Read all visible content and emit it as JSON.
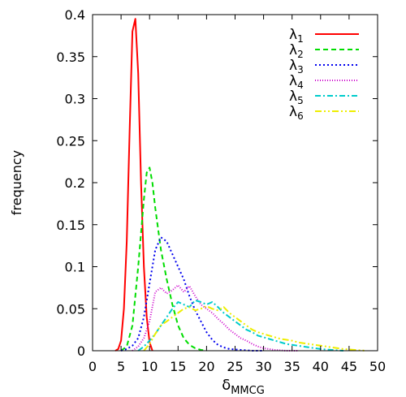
{
  "chart_data": {
    "type": "line",
    "title": "",
    "xlabel": "δ",
    "xlabel_subscript": "MMCG",
    "ylabel": "frequency",
    "xlim": [
      0,
      50
    ],
    "ylim": [
      0,
      0.4
    ],
    "xticks": [
      "0",
      "5",
      "10",
      "15",
      "20",
      "25",
      "30",
      "35",
      "40",
      "45",
      "50"
    ],
    "yticks": [
      "0",
      "0.05",
      "0.1",
      "0.15",
      "0.2",
      "0.25",
      "0.3",
      "0.35",
      "0.4"
    ],
    "grid": false,
    "legend_position": "top-right",
    "series": [
      {
        "name": "λ",
        "sub": "1",
        "color": "#ff0000",
        "dash": "solid",
        "x": [
          4,
          4.5,
          5,
          5.5,
          6,
          6.5,
          7,
          7.5,
          8,
          8.5,
          9,
          9.5,
          10,
          10.5
        ],
        "y": [
          0.0,
          0.002,
          0.012,
          0.05,
          0.13,
          0.26,
          0.38,
          0.395,
          0.33,
          0.2,
          0.1,
          0.04,
          0.01,
          0.0
        ]
      },
      {
        "name": "λ",
        "sub": "2",
        "color": "#00dd00",
        "dash": "6,4",
        "x": [
          5,
          6,
          7,
          8,
          9,
          9.5,
          10,
          10.5,
          11,
          12,
          13,
          14,
          15,
          16,
          17,
          18,
          19,
          20
        ],
        "y": [
          0.0,
          0.005,
          0.03,
          0.1,
          0.18,
          0.212,
          0.218,
          0.2,
          0.17,
          0.12,
          0.085,
          0.055,
          0.03,
          0.015,
          0.007,
          0.003,
          0.001,
          0.0
        ]
      },
      {
        "name": "λ",
        "sub": "3",
        "color": "#0000ee",
        "dash": "2,3",
        "x": [
          5,
          6,
          7,
          8,
          9,
          10,
          11,
          12,
          13,
          14,
          15,
          16,
          17,
          18,
          19,
          20,
          21,
          22,
          23,
          24,
          26,
          28,
          30
        ],
        "y": [
          0.0,
          0.002,
          0.006,
          0.015,
          0.04,
          0.08,
          0.12,
          0.135,
          0.13,
          0.115,
          0.1,
          0.085,
          0.065,
          0.048,
          0.035,
          0.022,
          0.013,
          0.007,
          0.004,
          0.002,
          0.001,
          0.0,
          0.0
        ]
      },
      {
        "name": "λ",
        "sub": "4",
        "color": "#cc00cc",
        "dash": "1,2",
        "x": [
          7,
          8,
          9,
          10,
          11,
          12,
          13,
          14,
          15,
          16,
          17,
          18,
          19,
          20,
          21,
          22,
          23,
          24,
          25,
          26,
          27,
          28,
          29,
          30,
          31,
          32,
          34,
          36
        ],
        "y": [
          0.0,
          0.005,
          0.015,
          0.035,
          0.07,
          0.075,
          0.068,
          0.072,
          0.078,
          0.07,
          0.077,
          0.065,
          0.055,
          0.05,
          0.045,
          0.038,
          0.032,
          0.025,
          0.02,
          0.015,
          0.012,
          0.008,
          0.005,
          0.003,
          0.002,
          0.001,
          0.0,
          0.0
        ]
      },
      {
        "name": "λ",
        "sub": "5",
        "color": "#00cccc",
        "dash": "7,3,2,3",
        "x": [
          8,
          9,
          10,
          11,
          12,
          13,
          14,
          15,
          16,
          17,
          18,
          19,
          20,
          21,
          22,
          23,
          24,
          25,
          26,
          27,
          28,
          29,
          30,
          31,
          32,
          33,
          34,
          35,
          36,
          38,
          40,
          42,
          44
        ],
        "y": [
          0.0,
          0.005,
          0.012,
          0.02,
          0.03,
          0.04,
          0.05,
          0.058,
          0.055,
          0.052,
          0.06,
          0.058,
          0.055,
          0.058,
          0.052,
          0.045,
          0.04,
          0.035,
          0.03,
          0.025,
          0.022,
          0.018,
          0.016,
          0.014,
          0.012,
          0.01,
          0.008,
          0.007,
          0.006,
          0.004,
          0.002,
          0.001,
          0.0
        ]
      },
      {
        "name": "λ",
        "sub": "6",
        "color": "#eeee00",
        "dash": "8,3,2,3,2,3",
        "x": [
          9,
          10,
          11,
          12,
          13,
          14,
          15,
          16,
          17,
          18,
          19,
          20,
          21,
          22,
          23,
          24,
          25,
          26,
          27,
          28,
          29,
          30,
          31,
          32,
          33,
          34,
          35,
          36,
          37,
          38,
          39,
          40,
          41,
          42,
          43,
          44,
          46,
          48
        ],
        "y": [
          0.0,
          0.008,
          0.02,
          0.03,
          0.035,
          0.04,
          0.045,
          0.05,
          0.052,
          0.048,
          0.05,
          0.053,
          0.05,
          0.048,
          0.052,
          0.045,
          0.04,
          0.035,
          0.03,
          0.025,
          0.022,
          0.02,
          0.018,
          0.016,
          0.014,
          0.013,
          0.012,
          0.01,
          0.009,
          0.008,
          0.007,
          0.006,
          0.005,
          0.004,
          0.003,
          0.002,
          0.001,
          0.0
        ]
      }
    ]
  }
}
